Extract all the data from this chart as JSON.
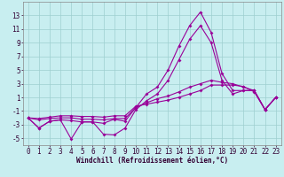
{
  "xlabel": "Windchill (Refroidissement éolien,°C)",
  "bg_color": "#c8eef0",
  "grid_color": "#9ecfcf",
  "line_color": "#990099",
  "x_values": [
    0,
    1,
    2,
    3,
    4,
    5,
    6,
    7,
    8,
    9,
    10,
    11,
    12,
    13,
    14,
    15,
    16,
    17,
    18,
    19,
    20,
    21,
    22,
    23
  ],
  "line1": [
    -2.0,
    -3.5,
    -2.5,
    -2.3,
    -2.4,
    -2.6,
    -2.6,
    -2.8,
    -2.2,
    -2.5,
    -0.5,
    1.5,
    2.5,
    5.0,
    8.5,
    11.5,
    13.5,
    10.5,
    4.5,
    2.0,
    2.0,
    2.0,
    -0.8,
    1.0
  ],
  "line2": [
    -2.0,
    -3.5,
    -2.5,
    -2.3,
    -5.1,
    -2.6,
    -2.6,
    -4.4,
    -4.5,
    -3.5,
    -0.8,
    0.5,
    1.5,
    3.5,
    6.5,
    9.5,
    11.5,
    9.0,
    3.5,
    1.5,
    2.0,
    2.0,
    -0.8,
    1.0
  ],
  "line3": [
    -2.0,
    -2.3,
    -2.1,
    -2.0,
    -2.0,
    -2.2,
    -2.2,
    -2.3,
    -2.1,
    -2.1,
    -0.5,
    0.2,
    0.8,
    1.2,
    1.8,
    2.5,
    3.0,
    3.5,
    3.2,
    3.0,
    2.5,
    2.0,
    -0.8,
    1.0
  ],
  "line4": [
    -2.0,
    -2.1,
    -1.9,
    -1.7,
    -1.7,
    -1.8,
    -1.8,
    -1.9,
    -1.7,
    -1.7,
    -0.3,
    0.0,
    0.3,
    0.6,
    1.0,
    1.5,
    2.0,
    2.8,
    2.8,
    2.8,
    2.6,
    1.8,
    -0.8,
    1.0
  ],
  "ylim": [
    -6,
    15
  ],
  "yticks": [
    -5,
    -3,
    -1,
    1,
    3,
    5,
    7,
    9,
    11,
    13
  ],
  "xlim": [
    -0.5,
    23.5
  ],
  "xlabel_fontsize": 5.5,
  "tick_fontsize": 5.5
}
